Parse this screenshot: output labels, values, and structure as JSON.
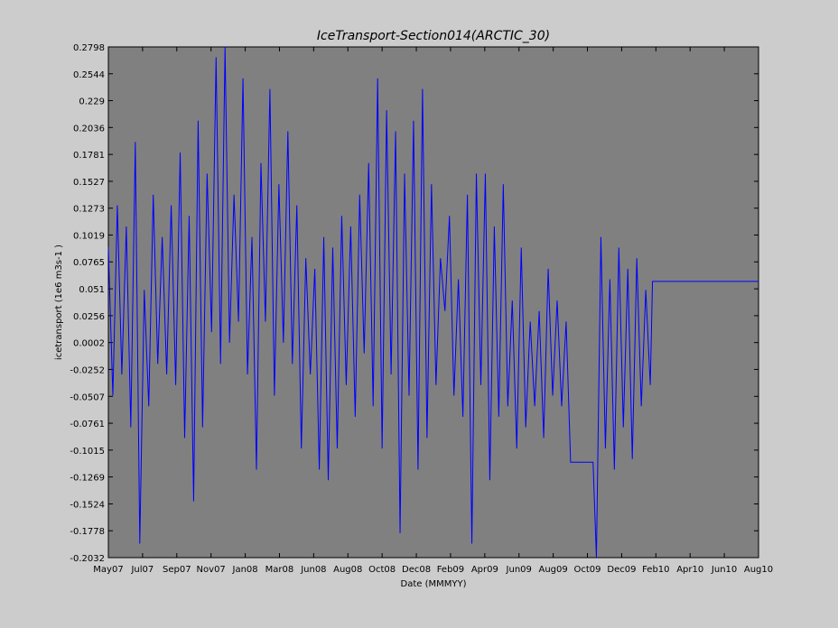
{
  "chart_data": {
    "type": "line",
    "title": "IceTransport-Section014(ARCTIC_30)",
    "x_label": "Date (MMMYY)",
    "y_label": "icetransport (1e6 m3s-1 )",
    "xlim": [
      0,
      1159
    ],
    "xticks": [
      {
        "value": 0,
        "label": "May07"
      },
      {
        "value": 61,
        "label": "Jul07"
      },
      {
        "value": 122,
        "label": "Sep07"
      },
      {
        "value": 183,
        "label": "Nov07"
      },
      {
        "value": 244,
        "label": "Jan08"
      },
      {
        "value": 305,
        "label": "Mar08"
      },
      {
        "value": 366,
        "label": "Jun08"
      },
      {
        "value": 427,
        "label": "Aug08"
      },
      {
        "value": 488,
        "label": "Oct08"
      },
      {
        "value": 549,
        "label": "Dec08"
      },
      {
        "value": 610,
        "label": "Feb09"
      },
      {
        "value": 671,
        "label": "Apr09"
      },
      {
        "value": 732,
        "label": "Jun09"
      },
      {
        "value": 793,
        "label": "Aug09"
      },
      {
        "value": 854,
        "label": "Oct09"
      },
      {
        "value": 915,
        "label": "Dec09"
      },
      {
        "value": 976,
        "label": "Feb10"
      },
      {
        "value": 1037,
        "label": "Apr10"
      },
      {
        "value": 1098,
        "label": "Jun10"
      },
      {
        "value": 1159,
        "label": "Aug10"
      }
    ],
    "ylim": [
      -0.2032,
      0.2798
    ],
    "yticks": [
      -0.2032,
      -0.1778,
      -0.1524,
      -0.1269,
      -0.1015,
      -0.0761,
      -0.0507,
      -0.0252,
      0.0002,
      0.0256,
      0.051,
      0.0765,
      0.1019,
      0.1273,
      0.1527,
      0.1781,
      0.2036,
      0.229,
      0.2544,
      0.2798
    ],
    "grid": false,
    "x": [
      0,
      8,
      16,
      24,
      32,
      40,
      48,
      56,
      64,
      72,
      80,
      88,
      96,
      104,
      112,
      120,
      128,
      136,
      144,
      152,
      160,
      168,
      176,
      184,
      192,
      200,
      208,
      216,
      224,
      232,
      240,
      248,
      256,
      264,
      272,
      280,
      288,
      296,
      304,
      312,
      320,
      328,
      336,
      344,
      352,
      360,
      368,
      376,
      384,
      392,
      400,
      408,
      416,
      424,
      432,
      440,
      448,
      456,
      464,
      472,
      480,
      488,
      496,
      504,
      512,
      520,
      528,
      536,
      544,
      552,
      560,
      568,
      576,
      584,
      592,
      600,
      608,
      616,
      624,
      632,
      640,
      648,
      656,
      664,
      672,
      680,
      688,
      696,
      704,
      712,
      720,
      728,
      736,
      744,
      752,
      760,
      768,
      776,
      784,
      792,
      800,
      808,
      816,
      824,
      864,
      870,
      878,
      886,
      894,
      902,
      910,
      918,
      926,
      934,
      942,
      950,
      958,
      966,
      970,
      1159
    ],
    "series": [
      {
        "name": "icetransport",
        "color": "#0000ff",
        "values": [
          0.09,
          -0.05,
          0.13,
          -0.03,
          0.11,
          -0.08,
          0.19,
          -0.19,
          0.05,
          -0.06,
          0.14,
          -0.02,
          0.1,
          -0.03,
          0.13,
          -0.04,
          0.18,
          -0.09,
          0.12,
          -0.15,
          0.21,
          -0.08,
          0.16,
          0.01,
          0.27,
          -0.02,
          0.28,
          0.0,
          0.14,
          0.02,
          0.25,
          -0.03,
          0.1,
          -0.12,
          0.17,
          0.02,
          0.24,
          -0.05,
          0.15,
          0.0,
          0.2,
          -0.02,
          0.13,
          -0.1,
          0.08,
          -0.03,
          0.07,
          -0.12,
          0.1,
          -0.13,
          0.09,
          -0.1,
          0.12,
          -0.04,
          0.11,
          -0.07,
          0.14,
          -0.01,
          0.17,
          -0.06,
          0.25,
          -0.1,
          0.22,
          -0.03,
          0.2,
          -0.18,
          0.16,
          -0.05,
          0.21,
          -0.12,
          0.24,
          -0.09,
          0.15,
          -0.04,
          0.08,
          0.03,
          0.12,
          -0.05,
          0.06,
          -0.07,
          0.14,
          -0.19,
          0.16,
          -0.04,
          0.16,
          -0.13,
          0.11,
          -0.07,
          0.15,
          -0.06,
          0.04,
          -0.1,
          0.09,
          -0.08,
          0.02,
          -0.06,
          0.03,
          -0.09,
          0.07,
          -0.05,
          0.04,
          -0.06,
          0.02,
          -0.113,
          -0.113,
          -0.2032,
          0.1,
          -0.1,
          0.06,
          -0.12,
          0.09,
          -0.08,
          0.07,
          -0.11,
          0.08,
          -0.06,
          0.05,
          -0.04,
          0.058,
          0.058
        ]
      }
    ]
  }
}
